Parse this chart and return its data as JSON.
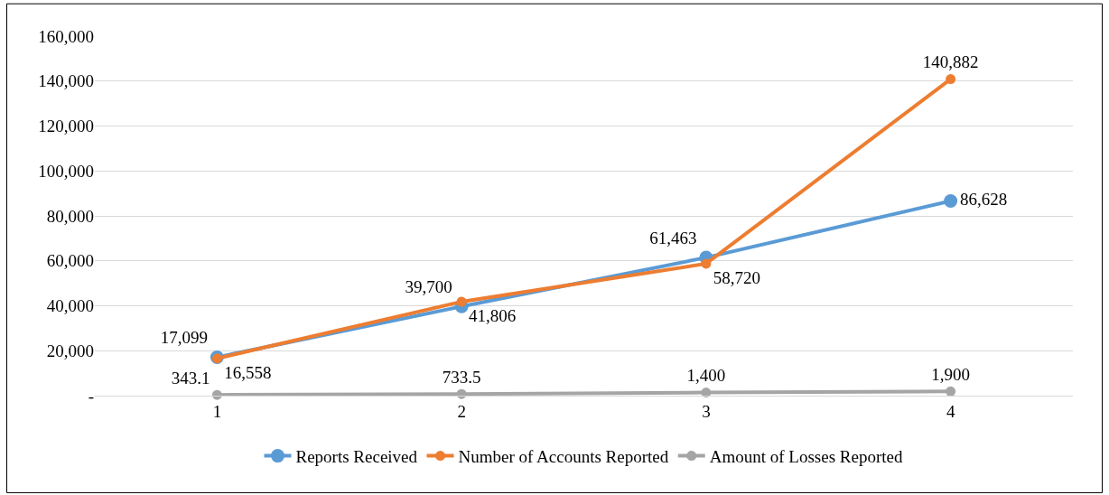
{
  "chart_data": {
    "type": "line",
    "categories": [
      "1",
      "2",
      "3",
      "4"
    ],
    "series": [
      {
        "name": "Reports Received",
        "color": "#5b9bd5",
        "values": [
          17099,
          39700,
          61463,
          86628
        ]
      },
      {
        "name": "Number of Accounts Reported",
        "color": "#ed7d31",
        "values": [
          16558,
          41806,
          58720,
          140882
        ]
      },
      {
        "name": "Amount of Losses Reported",
        "color": "#a5a5a5",
        "values": [
          343.1,
          733.5,
          1400,
          1900
        ]
      }
    ],
    "ylim": [
      0,
      160000
    ],
    "yticks": [
      {
        "value": 0,
        "label": "-"
      },
      {
        "value": 20000,
        "label": "20,000"
      },
      {
        "value": 40000,
        "label": "40,000"
      },
      {
        "value": 60000,
        "label": "60,000"
      },
      {
        "value": 80000,
        "label": "80,000"
      },
      {
        "value": 100000,
        "label": "100,000"
      },
      {
        "value": 120000,
        "label": "120,000"
      },
      {
        "value": 140000,
        "label": "140,000"
      },
      {
        "value": 160000,
        "label": "160,000"
      }
    ],
    "value_labels": [
      [
        "17,099",
        "39,700",
        "61,463",
        "86,628"
      ],
      [
        "16,558",
        "41,806",
        "58,720",
        "140,882"
      ],
      [
        "343.1",
        "733.5",
        "1,400",
        "1,900"
      ]
    ],
    "grid": "y",
    "legend": "bottom",
    "marker": "circle",
    "line_style": "solid"
  }
}
